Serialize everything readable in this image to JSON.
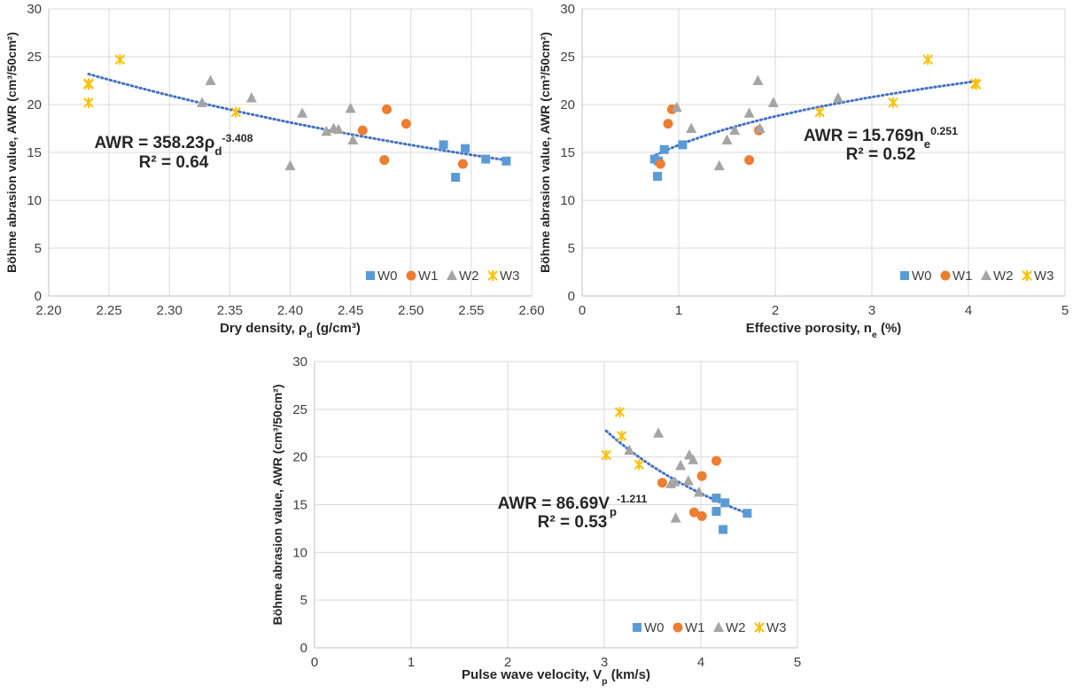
{
  "colors": {
    "W0": "#5b9bd5",
    "W1": "#ed7d31",
    "W2": "#a5a5a5",
    "W3": "#ffc000",
    "trendline": "#4472c4"
  },
  "chart_data": [
    {
      "type": "scatter",
      "xlabel_parts": [
        {
          "t": "Dry density, ρ",
          "s": "n"
        },
        {
          "t": "d",
          "s": "sub"
        },
        {
          "t": " (g/cm³)",
          "s": "n"
        }
      ],
      "ylabel": "Böhme abrasion value, AWR (cm³/50cm²)",
      "xlim": [
        2.2,
        2.6
      ],
      "ylim": [
        0,
        30
      ],
      "xticks": [
        2.2,
        2.25,
        2.3,
        2.35,
        2.4,
        2.45,
        2.5,
        2.55,
        2.6
      ],
      "xtick_labels": [
        "2.20",
        "2.25",
        "2.30",
        "2.35",
        "2.40",
        "2.45",
        "2.50",
        "2.55",
        "2.60"
      ],
      "yticks": [
        0,
        5,
        10,
        15,
        20,
        25,
        30
      ],
      "ytick_labels": [
        "0",
        "5",
        "10",
        "15",
        "20",
        "25",
        "30"
      ],
      "grid": true,
      "legend_position": "bottom-right",
      "series": [
        {
          "name": "W0",
          "marker": "square",
          "color": "#5b9bd5",
          "x": [
            2.527,
            2.545,
            2.537,
            2.562,
            2.579
          ],
          "y": [
            15.8,
            15.4,
            12.4,
            14.3,
            14.1
          ]
        },
        {
          "name": "W1",
          "marker": "circle",
          "color": "#ed7d31",
          "x": [
            2.46,
            2.48,
            2.496,
            2.478,
            2.543
          ],
          "y": [
            17.3,
            19.5,
            18.0,
            14.2,
            13.8
          ]
        },
        {
          "name": "W2",
          "marker": "triangle",
          "color": "#a5a5a5",
          "x": [
            2.327,
            2.334,
            2.368,
            2.4,
            2.41,
            2.43,
            2.436,
            2.44,
            2.45,
            2.452
          ],
          "y": [
            20.2,
            22.5,
            20.7,
            13.6,
            19.1,
            17.2,
            17.5,
            17.4,
            19.6,
            16.3
          ]
        },
        {
          "name": "W3",
          "marker": "star",
          "color": "#ffc000",
          "x": [
            2.233,
            2.233,
            2.233,
            2.259,
            2.355
          ],
          "y": [
            22.2,
            20.2,
            22.1,
            24.7,
            19.2
          ]
        }
      ],
      "trendline": {
        "type": "power",
        "a": 358.23,
        "b": -3.408,
        "x_range": [
          2.233,
          2.579
        ]
      },
      "equation_parts": [
        {
          "t": "AWR = 358.23ρ",
          "s": "n"
        },
        {
          "t": "d",
          "s": "sub"
        },
        {
          "t": "-3.408",
          "s": "sup"
        }
      ],
      "r2_text": "R² = 0.64"
    },
    {
      "type": "scatter",
      "xlabel_parts": [
        {
          "t": "Effective porosity, n",
          "s": "n"
        },
        {
          "t": "e",
          "s": "sub"
        },
        {
          "t": " (%)",
          "s": "n"
        }
      ],
      "ylabel": "Böhme abrasion value, AWR (cm³/50cm²)",
      "xlim": [
        0,
        5
      ],
      "ylim": [
        0,
        30
      ],
      "xticks": [
        0,
        1,
        2,
        3,
        4,
        5
      ],
      "xtick_labels": [
        "0",
        "1",
        "2",
        "3",
        "4",
        "5"
      ],
      "yticks": [
        0,
        5,
        10,
        15,
        20,
        25,
        30
      ],
      "ytick_labels": [
        "0",
        "5",
        "10",
        "15",
        "20",
        "25",
        "30"
      ],
      "grid": true,
      "legend_position": "bottom-right",
      "series": [
        {
          "name": "W0",
          "marker": "square",
          "color": "#5b9bd5",
          "x": [
            0.75,
            0.79,
            0.85,
            1.04,
            0.78
          ],
          "y": [
            14.3,
            14.1,
            15.3,
            15.8,
            12.5
          ]
        },
        {
          "name": "W1",
          "marker": "circle",
          "color": "#ed7d31",
          "x": [
            0.81,
            0.89,
            0.93,
            1.73,
            1.83
          ],
          "y": [
            13.8,
            18.0,
            19.5,
            14.2,
            17.3
          ]
        },
        {
          "name": "W2",
          "marker": "triangle",
          "color": "#a5a5a5",
          "x": [
            0.98,
            1.13,
            1.42,
            1.5,
            1.58,
            1.73,
            1.82,
            1.84,
            1.98,
            2.65
          ],
          "y": [
            19.7,
            17.5,
            13.6,
            16.3,
            17.3,
            19.1,
            22.5,
            17.5,
            20.2,
            20.7
          ]
        },
        {
          "name": "W3",
          "marker": "star",
          "color": "#ffc000",
          "x": [
            2.46,
            3.22,
            3.58,
            4.07,
            4.08
          ],
          "y": [
            19.2,
            20.2,
            24.7,
            22.2,
            22.1
          ]
        }
      ],
      "trendline": {
        "type": "power",
        "a": 15.769,
        "b": 0.251,
        "x_range": [
          0.72,
          4.08
        ]
      },
      "equation_parts": [
        {
          "t": "AWR = 15.769n",
          "s": "n"
        },
        {
          "t": "e",
          "s": "sub"
        },
        {
          "t": "0.251",
          "s": "sup"
        }
      ],
      "r2_text": "R² = 0.52"
    },
    {
      "type": "scatter",
      "xlabel_parts": [
        {
          "t": "Pulse wave velocity, V",
          "s": "n"
        },
        {
          "t": "p",
          "s": "sub"
        },
        {
          "t": " (km/s)",
          "s": "n"
        }
      ],
      "ylabel": "Böhme abrasion value, AWR (cm³/50cm²)",
      "xlim": [
        0,
        5
      ],
      "ylim": [
        0,
        30
      ],
      "xticks": [
        0,
        1,
        2,
        3,
        4,
        5
      ],
      "xtick_labels": [
        "0",
        "1",
        "2",
        "3",
        "4",
        "5"
      ],
      "yticks": [
        0,
        5,
        10,
        15,
        20,
        25,
        30
      ],
      "ytick_labels": [
        "0",
        "5",
        "10",
        "15",
        "20",
        "25",
        "30"
      ],
      "grid": true,
      "legend_position": "bottom-right",
      "series": [
        {
          "name": "W0",
          "marker": "square",
          "color": "#5b9bd5",
          "x": [
            4.16,
            4.16,
            4.25,
            4.23,
            4.48
          ],
          "y": [
            15.7,
            14.3,
            15.2,
            12.4,
            14.1
          ]
        },
        {
          "name": "W1",
          "marker": "circle",
          "color": "#ed7d31",
          "x": [
            3.6,
            3.93,
            4.01,
            4.01,
            4.16
          ],
          "y": [
            17.3,
            14.2,
            13.8,
            18.0,
            19.6
          ]
        },
        {
          "name": "W2",
          "marker": "triangle",
          "color": "#a5a5a5",
          "x": [
            3.26,
            3.56,
            3.69,
            3.73,
            3.74,
            3.79,
            3.87,
            3.88,
            3.92,
            3.98
          ],
          "y": [
            20.7,
            22.5,
            17.2,
            17.4,
            13.6,
            19.1,
            17.5,
            20.2,
            19.7,
            16.3
          ]
        },
        {
          "name": "W3",
          "marker": "star",
          "color": "#ffc000",
          "x": [
            3.02,
            3.16,
            3.18,
            3.36
          ],
          "y": [
            20.2,
            24.7,
            22.2,
            19.2
          ]
        }
      ],
      "trendline": {
        "type": "power",
        "a": 86.69,
        "b": -1.211,
        "x_range": [
          3.02,
          4.48
        ]
      },
      "equation_parts": [
        {
          "t": "AWR = 86.69V",
          "s": "n"
        },
        {
          "t": "p",
          "s": "sub"
        },
        {
          "t": "-1.211",
          "s": "sup"
        }
      ],
      "r2_text": "R² = 0.53"
    }
  ]
}
